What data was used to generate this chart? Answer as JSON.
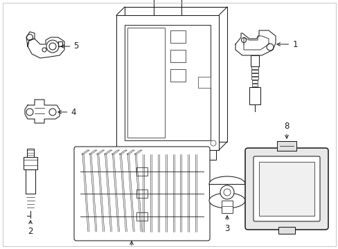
{
  "background_color": "#ffffff",
  "line_color": "#1a1a1a",
  "figsize": [
    4.89,
    3.6
  ],
  "dpi": 100,
  "border_color": "#cccccc",
  "label_fontsize": 8.5,
  "lw": 0.75
}
